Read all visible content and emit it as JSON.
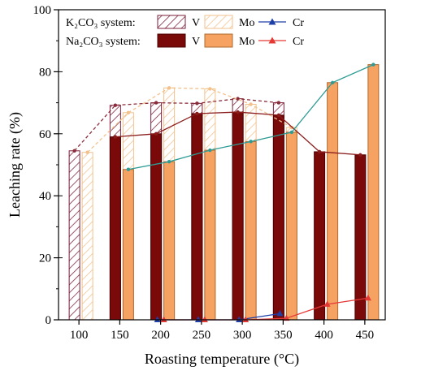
{
  "chart_data": {
    "type": "bar",
    "xlabel": "Roasting temperature (°C)",
    "ylabel": "Leaching rate (%)",
    "ylim": [
      0,
      100
    ],
    "yticks": [
      "0",
      "20",
      "40",
      "60",
      "80",
      "100"
    ],
    "categories": [
      "100",
      "150",
      "200",
      "250",
      "300",
      "350",
      "400",
      "450"
    ],
    "grid": false,
    "legend": {
      "placement": "top-left",
      "k2co3_label": "K₂CO₃ system:",
      "na2co3_label": "Na₂CO₃ system:",
      "v_label": "V",
      "mo_label": "Mo",
      "cr_label": "Cr"
    },
    "series": [
      {
        "name": "V",
        "system": "K2CO3",
        "style": "hatched-bar",
        "color": "#7b1f3a",
        "values": [
          54.5,
          69.2,
          70.0,
          69.8,
          71.3,
          70.0,
          null,
          null
        ]
      },
      {
        "name": "Mo",
        "system": "K2CO3",
        "style": "hatched-bar",
        "color": "#f2c18c",
        "values": [
          54.0,
          66.8,
          74.8,
          74.5,
          69.5,
          62.0,
          null,
          null
        ]
      },
      {
        "name": "V",
        "system": "Na2CO3",
        "style": "bar",
        "color": "#7a0a0a",
        "values": [
          null,
          59.0,
          60.0,
          66.5,
          67.0,
          66.0,
          54.2,
          53.2
        ]
      },
      {
        "name": "Mo",
        "system": "Na2CO3",
        "style": "bar",
        "color": "#f5a262",
        "values": [
          null,
          48.5,
          51.0,
          54.7,
          57.5,
          60.5,
          76.5,
          82.3
        ]
      },
      {
        "name": "Cr",
        "system": "K2CO3",
        "style": "line",
        "color": "#1f3fa8",
        "values": [
          null,
          null,
          0.0,
          0.0,
          0.0,
          2.0,
          null,
          null
        ]
      },
      {
        "name": "Cr",
        "system": "Na2CO3",
        "style": "line",
        "color": "#e53935",
        "values": [
          null,
          null,
          0.0,
          0.0,
          0.0,
          0.5,
          5.0,
          7.0
        ]
      }
    ],
    "connector_lines": [
      {
        "name": "K2CO3 V trend",
        "color": "#8b2c3c",
        "values": [
          54.5,
          69.2,
          70.0,
          69.8,
          71.3,
          70.0,
          null,
          null
        ]
      },
      {
        "name": "K2CO3 Mo trend",
        "color": "#f2c18c",
        "values": [
          54.0,
          66.8,
          74.8,
          74.5,
          69.5,
          62.0,
          null,
          null
        ]
      },
      {
        "name": "Na2CO3 V trend",
        "color": "#8b1c1c",
        "values": [
          null,
          59.0,
          60.0,
          66.5,
          67.0,
          66.0,
          54.2,
          53.2
        ]
      },
      {
        "name": "Na2CO3 Mo trend",
        "color": "#2e9c95",
        "values": [
          null,
          48.5,
          51.0,
          54.7,
          57.5,
          60.5,
          76.5,
          82.3
        ]
      }
    ]
  }
}
